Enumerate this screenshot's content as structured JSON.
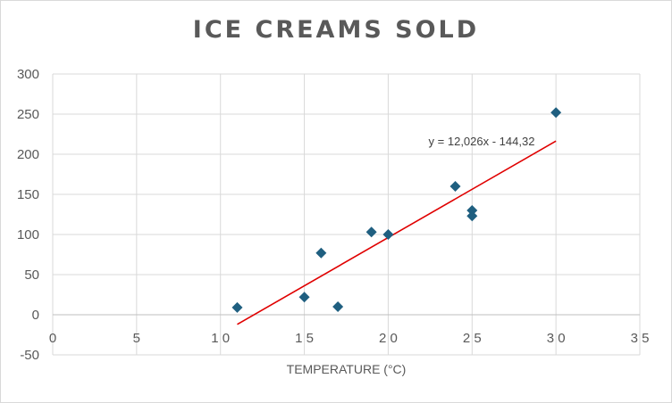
{
  "chart_data": {
    "type": "scatter",
    "title": "ICE CREAMS SOLD",
    "xlabel": "TEMPERATURE (°C)",
    "ylabel": "",
    "xlim": [
      0,
      35
    ],
    "ylim": [
      -50,
      300
    ],
    "xticks": [
      0,
      5,
      10,
      15,
      20,
      25,
      30,
      35
    ],
    "yticks": [
      -50,
      0,
      50,
      100,
      150,
      200,
      250,
      300
    ],
    "xtick_labels": [
      "0",
      "5",
      "1 0",
      "1 5",
      "2 0",
      "2 5",
      "3 0",
      "3 5"
    ],
    "ytick_labels": [
      "-50",
      "0",
      "50",
      "100",
      "150",
      "200",
      "250",
      "300"
    ],
    "grid": true,
    "legend": "none",
    "marker": "diamond",
    "marker_color": "#1f5f80",
    "points": [
      {
        "x": 11,
        "y": 9
      },
      {
        "x": 15,
        "y": 22
      },
      {
        "x": 16,
        "y": 77
      },
      {
        "x": 17,
        "y": 10
      },
      {
        "x": 19,
        "y": 103
      },
      {
        "x": 20,
        "y": 100
      },
      {
        "x": 24,
        "y": 160
      },
      {
        "x": 25,
        "y": 130
      },
      {
        "x": 25,
        "y": 123
      },
      {
        "x": 30,
        "y": 252
      }
    ],
    "trendline": {
      "type": "linear",
      "slope": 12.026,
      "intercept": -144.32,
      "x_range": [
        11,
        30
      ],
      "color": "#e00000",
      "equation": "y = 12,026x - 144,32"
    }
  }
}
